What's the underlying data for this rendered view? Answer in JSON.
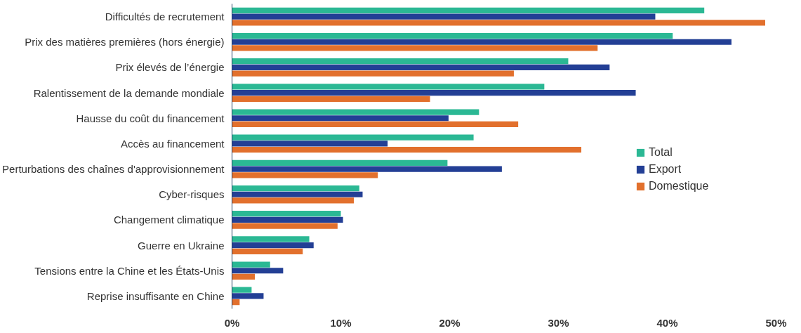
{
  "chart_data": {
    "type": "bar",
    "orientation": "horizontal",
    "categories": [
      "Difficultés de recrutement",
      "Prix des matières premières (hors énergie)",
      "Prix élevés de l’énergie",
      "Ralentissement de la demande mondiale",
      "Hausse du coût du financement",
      "Accès au financement",
      "Perturbations des chaînes d'approvisionnement",
      "Cyber-risques",
      "Changement climatique",
      "Guerre en Ukraine",
      "Tensions entre la Chine et les États-Unis",
      "Reprise insuffisante en Chine"
    ],
    "series": [
      {
        "name": "Total",
        "color": "#2bb894",
        "values": [
          43.4,
          40.5,
          30.9,
          28.7,
          22.7,
          22.2,
          19.8,
          11.7,
          10.0,
          7.1,
          3.5,
          1.8
        ]
      },
      {
        "name": "Export",
        "color": "#233f95",
        "values": [
          38.9,
          45.9,
          34.7,
          37.1,
          19.9,
          14.3,
          24.8,
          12.0,
          10.2,
          7.5,
          4.7,
          2.9
        ]
      },
      {
        "name": "Domestique",
        "color": "#e2702d",
        "values": [
          49.0,
          33.6,
          25.9,
          18.2,
          26.3,
          32.1,
          13.4,
          11.2,
          9.7,
          6.5,
          2.1,
          0.7
        ]
      }
    ],
    "xlim": [
      0,
      50
    ],
    "xticks": [
      {
        "value": 0,
        "label": "0%"
      },
      {
        "value": 10,
        "label": "10%"
      },
      {
        "value": 20,
        "label": "20%"
      },
      {
        "value": 30,
        "label": "30%"
      },
      {
        "value": 40,
        "label": "40%"
      },
      {
        "value": 50,
        "label": "50%"
      }
    ],
    "grid": false,
    "legend": "right"
  }
}
